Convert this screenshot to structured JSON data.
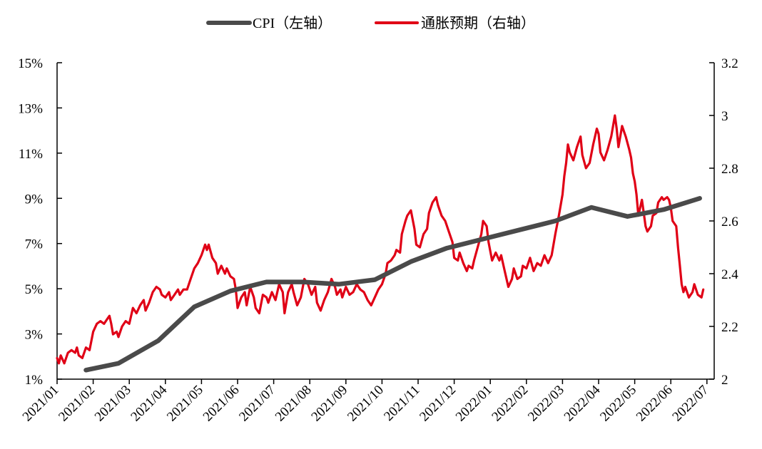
{
  "chart_data": {
    "type": "line",
    "legend": {
      "position": "top-center"
    },
    "grid": false,
    "x_axis": {
      "tick_labels": [
        "2021/01",
        "2021/02",
        "2021/03",
        "2021/04",
        "2021/05",
        "2021/06",
        "2021/07",
        "2021/08",
        "2021/09",
        "2021/10",
        "2021/11",
        "2021/12",
        "2022/01",
        "2022/02",
        "2022/03",
        "2022/04",
        "2022/05",
        "2022/06",
        "2022/07"
      ],
      "range": [
        0,
        18.3
      ]
    },
    "y_left": {
      "tick_labels": [
        "1%",
        "3%",
        "5%",
        "7%",
        "9%",
        "11%",
        "13%",
        "15%"
      ],
      "ticks": [
        1,
        3,
        5,
        7,
        9,
        11,
        13,
        15
      ],
      "range": [
        1,
        15
      ]
    },
    "y_right": {
      "tick_labels": [
        "2",
        "2.2",
        "2.4",
        "2.6",
        "2.8",
        "3",
        "3.2"
      ],
      "ticks": [
        2,
        2.2,
        2.4,
        2.6,
        2.8,
        3,
        3.2
      ],
      "range": [
        2,
        3.2
      ]
    },
    "series": [
      {
        "name": "CPI（左轴）",
        "axis": "left",
        "color": "#4a4a4a",
        "points": [
          [
            0.8,
            1.4
          ],
          [
            1.7,
            1.7
          ],
          [
            2.8,
            2.7
          ],
          [
            3.8,
            4.2
          ],
          [
            4.8,
            4.9
          ],
          [
            5.8,
            5.3
          ],
          [
            6.8,
            5.3
          ],
          [
            7.8,
            5.2
          ],
          [
            8.8,
            5.4
          ],
          [
            9.8,
            6.2
          ],
          [
            10.8,
            6.8
          ],
          [
            11.8,
            7.2
          ],
          [
            12.8,
            7.6
          ],
          [
            13.8,
            8.0
          ],
          [
            14.8,
            8.6
          ],
          [
            15.8,
            8.2
          ],
          [
            16.8,
            8.5
          ],
          [
            17.8,
            9.0
          ]
        ]
      },
      {
        "name": "通胀预期（右轴）",
        "axis": "right",
        "color": "#e00016",
        "points": [
          [
            0.0,
            2.08
          ],
          [
            0.05,
            2.06
          ],
          [
            0.1,
            2.09
          ],
          [
            0.2,
            2.06
          ],
          [
            0.3,
            2.1
          ],
          [
            0.4,
            2.11
          ],
          [
            0.5,
            2.1
          ],
          [
            0.55,
            2.12
          ],
          [
            0.6,
            2.09
          ],
          [
            0.7,
            2.08
          ],
          [
            0.8,
            2.12
          ],
          [
            0.9,
            2.11
          ],
          [
            1.0,
            2.18
          ],
          [
            1.1,
            2.21
          ],
          [
            1.2,
            2.22
          ],
          [
            1.3,
            2.21
          ],
          [
            1.4,
            2.23
          ],
          [
            1.45,
            2.24
          ],
          [
            1.5,
            2.21
          ],
          [
            1.55,
            2.17
          ],
          [
            1.65,
            2.18
          ],
          [
            1.7,
            2.16
          ],
          [
            1.8,
            2.2
          ],
          [
            1.9,
            2.22
          ],
          [
            2.0,
            2.21
          ],
          [
            2.1,
            2.27
          ],
          [
            2.2,
            2.25
          ],
          [
            2.3,
            2.28
          ],
          [
            2.4,
            2.3
          ],
          [
            2.45,
            2.26
          ],
          [
            2.55,
            2.29
          ],
          [
            2.65,
            2.33
          ],
          [
            2.75,
            2.35
          ],
          [
            2.85,
            2.34
          ],
          [
            2.9,
            2.32
          ],
          [
            3.0,
            2.31
          ],
          [
            3.1,
            2.33
          ],
          [
            3.15,
            2.3
          ],
          [
            3.25,
            2.32
          ],
          [
            3.35,
            2.34
          ],
          [
            3.4,
            2.32
          ],
          [
            3.5,
            2.34
          ],
          [
            3.6,
            2.34
          ],
          [
            3.7,
            2.38
          ],
          [
            3.8,
            2.42
          ],
          [
            3.9,
            2.44
          ],
          [
            4.0,
            2.47
          ],
          [
            4.1,
            2.51
          ],
          [
            4.15,
            2.49
          ],
          [
            4.2,
            2.51
          ],
          [
            4.3,
            2.46
          ],
          [
            4.4,
            2.44
          ],
          [
            4.45,
            2.4
          ],
          [
            4.55,
            2.43
          ],
          [
            4.65,
            2.4
          ],
          [
            4.7,
            2.42
          ],
          [
            4.8,
            2.39
          ],
          [
            4.9,
            2.38
          ],
          [
            4.95,
            2.34
          ],
          [
            5.0,
            2.27
          ],
          [
            5.1,
            2.31
          ],
          [
            5.2,
            2.33
          ],
          [
            5.25,
            2.28
          ],
          [
            5.35,
            2.35
          ],
          [
            5.45,
            2.31
          ],
          [
            5.5,
            2.27
          ],
          [
            5.6,
            2.25
          ],
          [
            5.7,
            2.32
          ],
          [
            5.8,
            2.31
          ],
          [
            5.85,
            2.29
          ],
          [
            5.95,
            2.33
          ],
          [
            6.05,
            2.3
          ],
          [
            6.15,
            2.36
          ],
          [
            6.25,
            2.33
          ],
          [
            6.3,
            2.25
          ],
          [
            6.4,
            2.33
          ],
          [
            6.5,
            2.36
          ],
          [
            6.55,
            2.33
          ],
          [
            6.65,
            2.28
          ],
          [
            6.75,
            2.31
          ],
          [
            6.85,
            2.38
          ],
          [
            6.95,
            2.36
          ],
          [
            7.05,
            2.32
          ],
          [
            7.15,
            2.35
          ],
          [
            7.2,
            2.29
          ],
          [
            7.3,
            2.26
          ],
          [
            7.4,
            2.3
          ],
          [
            7.5,
            2.33
          ],
          [
            7.6,
            2.38
          ],
          [
            7.7,
            2.35
          ],
          [
            7.75,
            2.32
          ],
          [
            7.85,
            2.34
          ],
          [
            7.9,
            2.31
          ],
          [
            8.0,
            2.35
          ],
          [
            8.1,
            2.32
          ],
          [
            8.2,
            2.33
          ],
          [
            8.3,
            2.36
          ],
          [
            8.4,
            2.34
          ],
          [
            8.5,
            2.33
          ],
          [
            8.6,
            2.3
          ],
          [
            8.7,
            2.28
          ],
          [
            8.8,
            2.31
          ],
          [
            8.9,
            2.34
          ],
          [
            9.0,
            2.36
          ],
          [
            9.1,
            2.4
          ],
          [
            9.15,
            2.44
          ],
          [
            9.25,
            2.45
          ],
          [
            9.35,
            2.47
          ],
          [
            9.4,
            2.49
          ],
          [
            9.5,
            2.48
          ],
          [
            9.55,
            2.55
          ],
          [
            9.65,
            2.6
          ],
          [
            9.7,
            2.62
          ],
          [
            9.8,
            2.64
          ],
          [
            9.9,
            2.57
          ],
          [
            9.95,
            2.51
          ],
          [
            10.05,
            2.5
          ],
          [
            10.15,
            2.55
          ],
          [
            10.25,
            2.57
          ],
          [
            10.3,
            2.63
          ],
          [
            10.4,
            2.67
          ],
          [
            10.5,
            2.69
          ],
          [
            10.55,
            2.66
          ],
          [
            10.65,
            2.62
          ],
          [
            10.75,
            2.6
          ],
          [
            10.85,
            2.56
          ],
          [
            10.95,
            2.52
          ],
          [
            11.0,
            2.46
          ],
          [
            11.1,
            2.45
          ],
          [
            11.15,
            2.48
          ],
          [
            11.25,
            2.44
          ],
          [
            11.35,
            2.41
          ],
          [
            11.4,
            2.43
          ],
          [
            11.5,
            2.42
          ],
          [
            11.55,
            2.45
          ],
          [
            11.65,
            2.5
          ],
          [
            11.75,
            2.55
          ],
          [
            11.8,
            2.6
          ],
          [
            11.9,
            2.58
          ],
          [
            11.95,
            2.52
          ],
          [
            12.05,
            2.45
          ],
          [
            12.15,
            2.48
          ],
          [
            12.25,
            2.45
          ],
          [
            12.3,
            2.47
          ],
          [
            12.4,
            2.41
          ],
          [
            12.5,
            2.35
          ],
          [
            12.6,
            2.38
          ],
          [
            12.65,
            2.42
          ],
          [
            12.75,
            2.38
          ],
          [
            12.85,
            2.39
          ],
          [
            12.9,
            2.43
          ],
          [
            13.0,
            2.42
          ],
          [
            13.1,
            2.46
          ],
          [
            13.2,
            2.41
          ],
          [
            13.3,
            2.44
          ],
          [
            13.4,
            2.43
          ],
          [
            13.5,
            2.47
          ],
          [
            13.6,
            2.44
          ],
          [
            13.7,
            2.47
          ],
          [
            13.8,
            2.55
          ],
          [
            13.9,
            2.62
          ],
          [
            14.0,
            2.7
          ],
          [
            14.05,
            2.77
          ],
          [
            14.1,
            2.82
          ],
          [
            14.15,
            2.89
          ],
          [
            14.2,
            2.86
          ],
          [
            14.3,
            2.83
          ],
          [
            14.4,
            2.88
          ],
          [
            14.5,
            2.92
          ],
          [
            14.55,
            2.85
          ],
          [
            14.65,
            2.8
          ],
          [
            14.75,
            2.82
          ],
          [
            14.85,
            2.89
          ],
          [
            14.95,
            2.95
          ],
          [
            15.0,
            2.93
          ],
          [
            15.05,
            2.86
          ],
          [
            15.15,
            2.83
          ],
          [
            15.25,
            2.87
          ],
          [
            15.35,
            2.92
          ],
          [
            15.45,
            3.0
          ],
          [
            15.5,
            2.95
          ],
          [
            15.55,
            2.88
          ],
          [
            15.65,
            2.96
          ],
          [
            15.75,
            2.92
          ],
          [
            15.85,
            2.87
          ],
          [
            15.9,
            2.84
          ],
          [
            15.95,
            2.78
          ],
          [
            16.0,
            2.75
          ],
          [
            16.05,
            2.7
          ],
          [
            16.1,
            2.62
          ],
          [
            16.15,
            2.65
          ],
          [
            16.2,
            2.68
          ],
          [
            16.25,
            2.63
          ],
          [
            16.3,
            2.58
          ],
          [
            16.35,
            2.56
          ],
          [
            16.45,
            2.58
          ],
          [
            16.5,
            2.62
          ],
          [
            16.6,
            2.63
          ],
          [
            16.65,
            2.67
          ],
          [
            16.75,
            2.69
          ],
          [
            16.8,
            2.68
          ],
          [
            16.9,
            2.69
          ],
          [
            16.95,
            2.68
          ],
          [
            17.0,
            2.65
          ],
          [
            17.05,
            2.6
          ],
          [
            17.15,
            2.58
          ],
          [
            17.2,
            2.5
          ],
          [
            17.25,
            2.43
          ],
          [
            17.3,
            2.36
          ],
          [
            17.35,
            2.33
          ],
          [
            17.4,
            2.35
          ],
          [
            17.5,
            2.31
          ],
          [
            17.6,
            2.33
          ],
          [
            17.65,
            2.36
          ],
          [
            17.75,
            2.32
          ],
          [
            17.85,
            2.31
          ],
          [
            17.9,
            2.34
          ]
        ]
      }
    ]
  }
}
